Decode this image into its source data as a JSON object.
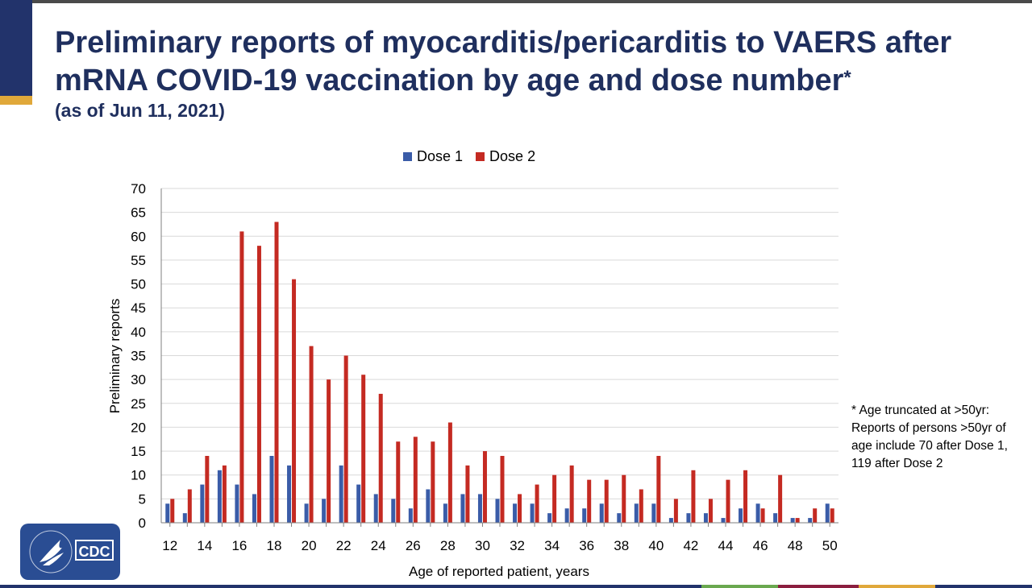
{
  "slide": {
    "title": "Preliminary reports of myocarditis/pericarditis to VAERS after mRNA COVID-19 vaccination by age and dose number",
    "title_marker": "*",
    "subtitle": "(as of Jun 11, 2021)",
    "footnote": "* Age truncated at >50yr: Reports of persons >50yr of age include 70 after Dose 1, 119 after Dose 2",
    "logo_text": "CDC"
  },
  "colors": {
    "dose1": "#3a5ca8",
    "dose2": "#c42a22",
    "title": "#1f2f5e",
    "grid": "#d9d9d9"
  },
  "chart_data": {
    "type": "bar",
    "xlabel": "Age of reported patient, years",
    "ylabel": "Preliminary reports",
    "ylim": [
      0,
      70
    ],
    "yticks": [
      0,
      5,
      10,
      15,
      20,
      25,
      30,
      35,
      40,
      45,
      50,
      55,
      60,
      65,
      70
    ],
    "xtick_labels": [
      "12",
      "14",
      "16",
      "18",
      "20",
      "22",
      "24",
      "26",
      "28",
      "30",
      "32",
      "34",
      "36",
      "38",
      "40",
      "42",
      "44",
      "46",
      "48",
      "50"
    ],
    "grid": true,
    "legend_position": "top",
    "categories": [
      12,
      13,
      14,
      15,
      16,
      17,
      18,
      19,
      20,
      21,
      22,
      23,
      24,
      25,
      26,
      27,
      28,
      29,
      30,
      31,
      32,
      33,
      34,
      35,
      36,
      37,
      38,
      39,
      40,
      41,
      42,
      43,
      44,
      45,
      46,
      47,
      48,
      49,
      50
    ],
    "series": [
      {
        "name": "Dose 1",
        "values": [
          4,
          2,
          8,
          11,
          8,
          6,
          14,
          12,
          4,
          5,
          12,
          8,
          6,
          5,
          3,
          7,
          4,
          6,
          6,
          5,
          4,
          4,
          2,
          3,
          3,
          4,
          2,
          4,
          4,
          1,
          2,
          2,
          1,
          3,
          4,
          2,
          1,
          1,
          4
        ]
      },
      {
        "name": "Dose 2",
        "values": [
          5,
          7,
          14,
          12,
          61,
          58,
          63,
          51,
          37,
          30,
          35,
          31,
          27,
          17,
          18,
          17,
          21,
          12,
          15,
          14,
          6,
          8,
          10,
          12,
          9,
          9,
          10,
          7,
          14,
          5,
          11,
          5,
          9,
          11,
          3,
          10,
          1,
          3,
          3
        ]
      }
    ]
  }
}
